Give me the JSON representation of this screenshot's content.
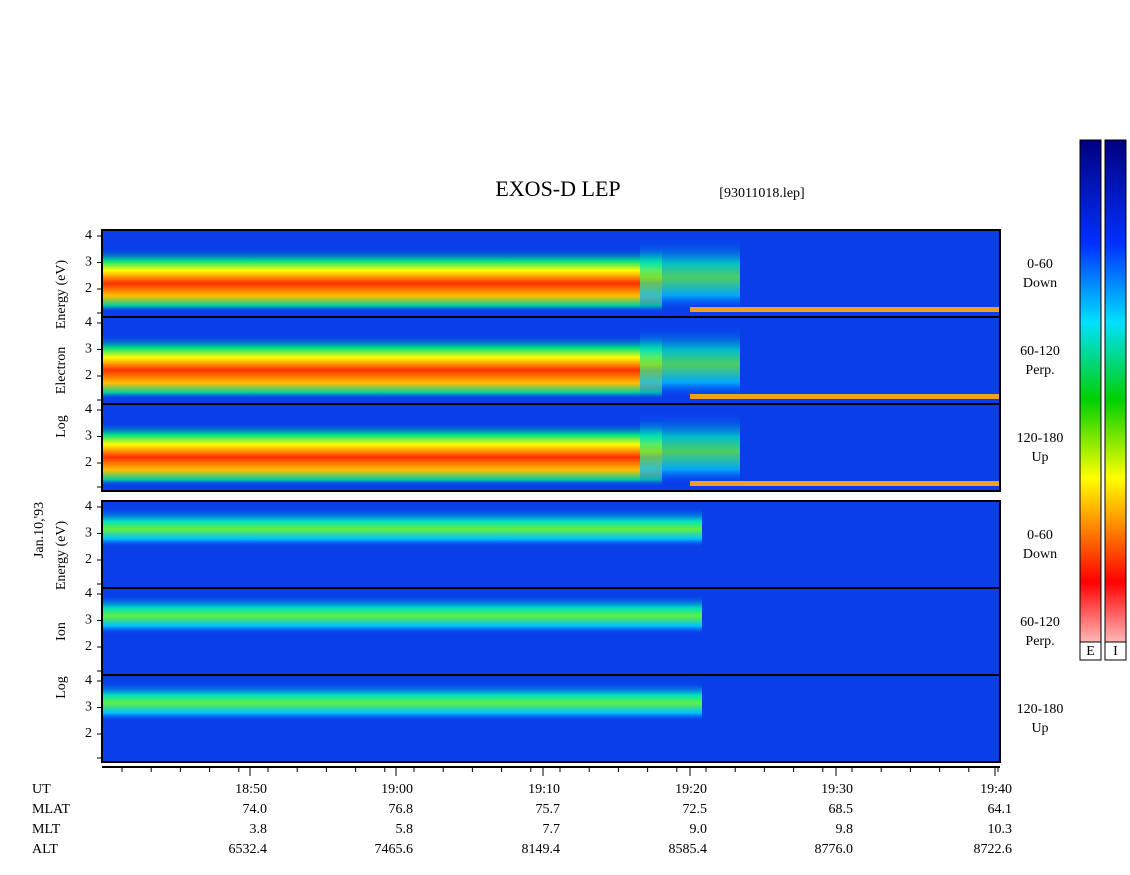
{
  "title": "EXOS-D LEP",
  "file": "[93011018.lep]",
  "date": "Jan.10,'93",
  "colorbar_labels": [
    "E",
    "I"
  ],
  "electron": {
    "ylabel": [
      "Log",
      "Electron",
      "Energy (eV)"
    ],
    "yticks": [
      4,
      3,
      2
    ],
    "panels": [
      [
        "0-60",
        "Down"
      ],
      [
        "60-120",
        "Perp."
      ],
      [
        "120-180",
        "Up"
      ]
    ]
  },
  "ion": {
    "ylabel": [
      "Log",
      "Ion",
      "Energy (eV)"
    ],
    "yticks": [
      4,
      3,
      2
    ],
    "panels": [
      [
        "0-60",
        "Down"
      ],
      [
        "60-120",
        "Perp."
      ],
      [
        "120-180",
        "Up"
      ]
    ]
  },
  "ephemeris": {
    "rows": [
      [
        "UT",
        "18:50",
        "19:00",
        "19:10",
        "19:20",
        "19:30",
        "19:40"
      ],
      [
        "MLAT",
        "74.0",
        "76.8",
        "75.7",
        "72.5",
        "68.5",
        "64.1"
      ],
      [
        "MLT",
        "3.8",
        "5.8",
        "7.7",
        "9.0",
        "9.8",
        "10.3"
      ],
      [
        "ALT",
        "6532.4",
        "7465.6",
        "8149.4",
        "8585.4",
        "8776.0",
        "8722.6"
      ]
    ]
  }
}
